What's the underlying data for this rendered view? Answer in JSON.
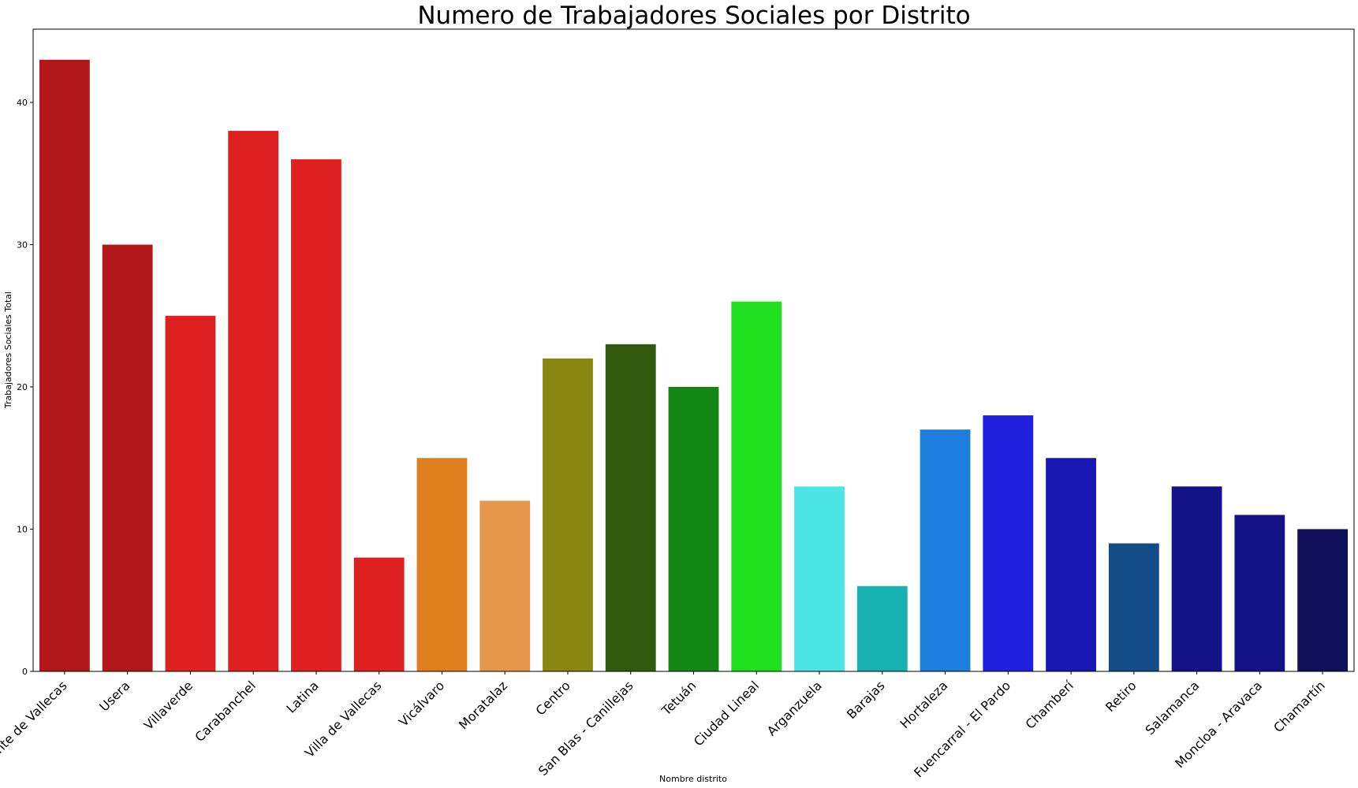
{
  "chart_data": {
    "type": "bar",
    "title": "Numero de Trabajadores Sociales por Distrito",
    "xlabel": "Nombre distrito",
    "ylabel": "Trabajadores Sociales Total",
    "ylim": [
      0,
      45.15
    ],
    "yticks": [
      0,
      10,
      20,
      30,
      40
    ],
    "grid": false,
    "legend": "none",
    "categories": [
      "Puente de Vallecas",
      "Usera",
      "Villaverde",
      "Carabanchel",
      "Latina",
      "Villa de Vallecas",
      "Vicálvaro",
      "Moratalaz",
      "Centro",
      "San Blas - Canillejas",
      "Tetuán",
      "Ciudad Lineal",
      "Arganzuela",
      "Barajas",
      "Hortaleza",
      "Fuencarral - El Pardo",
      "Chamberí",
      "Retiro",
      "Salamanca",
      "Moncloa - Aravaca",
      "Chamartín"
    ],
    "values": [
      43,
      30,
      25,
      38,
      36,
      8,
      15,
      12,
      22,
      23,
      20,
      26,
      13,
      6,
      17,
      18,
      15,
      9,
      13,
      11,
      10
    ],
    "colors": [
      "#b2181a",
      "#b2181a",
      "#de2020",
      "#de2020",
      "#de2020",
      "#de2020",
      "#de7e1e",
      "#e5974b",
      "#878712",
      "#325a0f",
      "#138713",
      "#20e020",
      "#4be5e5",
      "#18b2b2",
      "#1e7ede",
      "#2020de",
      "#1818b2",
      "#134c87",
      "#131387",
      "#131387",
      "#0f0f5a"
    ]
  }
}
